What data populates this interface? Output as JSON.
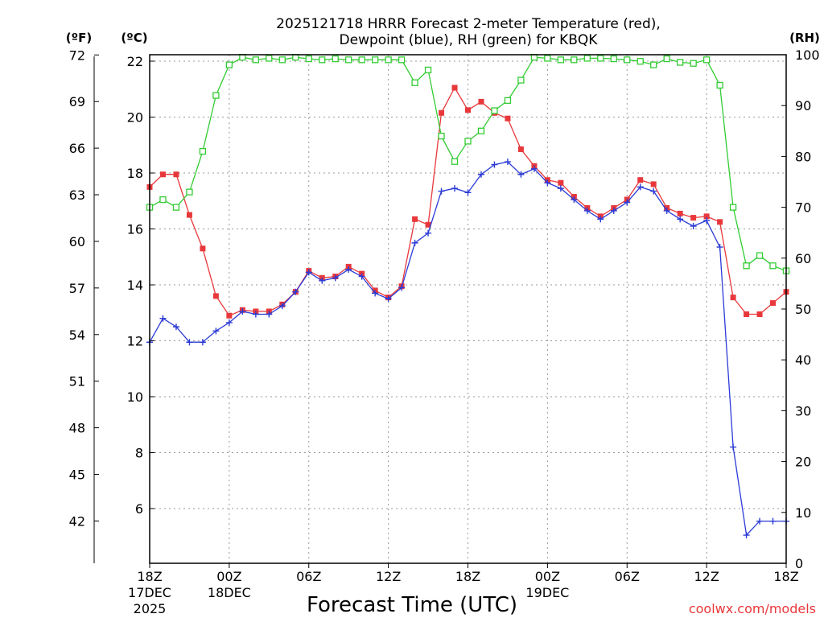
{
  "chart_data": {
    "type": "line",
    "title_line1": "2025121718 HRRR Forecast 2-meter Temperature (red),",
    "title_line2": "Dewpoint (blue), RH (green) for KBQK",
    "unit_f": "(ºF)",
    "unit_c": "(ºC)",
    "unit_rh": "(RH)",
    "xlabel": "Forecast Time (UTC)",
    "watermark": "coolwx.com/models",
    "x_range": [
      0,
      48
    ],
    "c_range": [
      3.5,
      21.8
    ],
    "rh_range": [
      0,
      100
    ],
    "x_ticks": [
      {
        "x": 0,
        "label": "18Z",
        "sub1": "17DEC",
        "sub2": "2025"
      },
      {
        "x": 6,
        "label": "00Z",
        "sub1": "18DEC",
        "sub2": ""
      },
      {
        "x": 12,
        "label": "06Z",
        "sub1": "",
        "sub2": ""
      },
      {
        "x": 18,
        "label": "12Z",
        "sub1": "",
        "sub2": ""
      },
      {
        "x": 24,
        "label": "18Z",
        "sub1": "",
        "sub2": ""
      },
      {
        "x": 30,
        "label": "00Z",
        "sub1": "19DEC",
        "sub2": ""
      },
      {
        "x": 36,
        "label": "06Z",
        "sub1": "",
        "sub2": ""
      },
      {
        "x": 42,
        "label": "12Z",
        "sub1": "",
        "sub2": ""
      },
      {
        "x": 48,
        "label": "18Z",
        "sub1": "",
        "sub2": ""
      }
    ],
    "c_ticks": [
      6,
      8,
      10,
      12,
      14,
      16,
      18,
      20,
      22
    ],
    "f_ticks": [
      42,
      45,
      48,
      51,
      54,
      57,
      60,
      63,
      66,
      69,
      72
    ],
    "rh_ticks": [
      0,
      10,
      20,
      30,
      40,
      50,
      60,
      70,
      80,
      90,
      100
    ],
    "series": [
      {
        "name": "Temperature",
        "color": "#e8383b",
        "marker": "filled-square",
        "axis": "c",
        "values": [
          17.5,
          17.95,
          17.95,
          16.5,
          15.3,
          13.6,
          12.9,
          13.1,
          13.05,
          13.05,
          13.3,
          13.75,
          14.5,
          14.25,
          14.3,
          14.65,
          14.4,
          13.8,
          13.55,
          13.95,
          16.35,
          16.15,
          20.15,
          21.05,
          20.25,
          20.55,
          20.15,
          19.95,
          18.85,
          18.25,
          17.75,
          17.65,
          17.15,
          16.75,
          16.45,
          16.75,
          17.05,
          17.75,
          17.6,
          16.75,
          16.55,
          16.4,
          16.45,
          16.25,
          13.55,
          12.95,
          12.95,
          13.35,
          13.75
        ]
      },
      {
        "name": "Dewpoint",
        "color": "#2b3bd6",
        "marker": "plus",
        "axis": "c",
        "values": [
          11.95,
          12.8,
          12.5,
          11.95,
          11.95,
          12.35,
          12.65,
          13.05,
          12.95,
          12.95,
          13.25,
          13.75,
          14.45,
          14.15,
          14.25,
          14.55,
          14.3,
          13.7,
          13.5,
          13.9,
          15.5,
          15.85,
          17.35,
          17.45,
          17.3,
          17.95,
          18.3,
          18.4,
          17.95,
          18.15,
          17.65,
          17.45,
          17.05,
          16.65,
          16.35,
          16.65,
          16.95,
          17.5,
          17.35,
          16.65,
          16.35,
          16.1,
          16.3,
          15.35,
          8.2,
          5.05,
          5.55,
          5.55,
          5.55
        ]
      },
      {
        "name": "RH",
        "color": "#33cc33",
        "marker": "open-square",
        "axis": "rh",
        "values": [
          70,
          71.5,
          70,
          73,
          81,
          92,
          98,
          99.5,
          99,
          99.3,
          99,
          99.5,
          99.2,
          99,
          99.2,
          99,
          99,
          99,
          99,
          99,
          94.5,
          97,
          84,
          79,
          83,
          85,
          89,
          91,
          95,
          99.5,
          99.3,
          99,
          99,
          99.3,
          99.3,
          99.2,
          99,
          98.7,
          98,
          99.2,
          98.5,
          98.3,
          99,
          94,
          70,
          58.5,
          60.5,
          58.5,
          57.5
        ]
      }
    ]
  }
}
